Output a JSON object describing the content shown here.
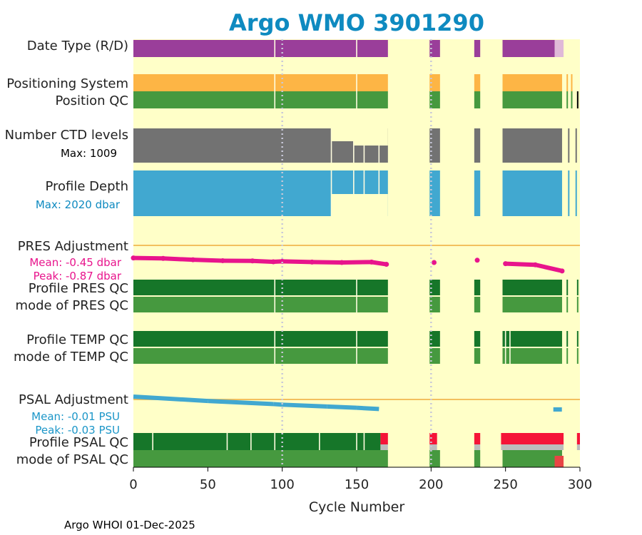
{
  "title": "Argo WMO 3901290",
  "footer": "Argo WHOI 01-Dec-2025",
  "chart_data": {
    "type": "bar",
    "title": "Argo WMO 3901290",
    "xlabel": "Cycle Number",
    "xlim": [
      0,
      300
    ],
    "xticks": [
      "0",
      "50",
      "100",
      "150",
      "200",
      "250",
      "300"
    ],
    "xtick_values": [
      0,
      50,
      100,
      150,
      200,
      250,
      300
    ],
    "grid_dotted_cycles": [
      100,
      200
    ],
    "data_gaps": [
      [
        171,
        199
      ],
      [
        206,
        229
      ],
      [
        233,
        248
      ]
    ],
    "panels": {
      "date_type": {
        "label": "Date Type (R/D)",
        "realtime_range": [
          0,
          283
        ],
        "delayed_range": [
          283,
          289
        ],
        "missing_cycles": [
          95,
          150,
          200,
          202,
          288,
          293,
          297
        ]
      },
      "positioning_system": {
        "label": "Positioning System",
        "range": [
          0,
          288
        ]
      },
      "position_qc": {
        "label": "Position QC",
        "range": [
          0,
          288
        ],
        "bad_cycles": [
          298
        ]
      },
      "ctd_levels": {
        "label": "Number CTD levels",
        "max_label": "Max: 1009",
        "max": 1009
      },
      "profile_depth": {
        "label": "Profile Depth",
        "max_label": "Max: 2020 dbar",
        "max": 2020
      },
      "pres_adjustment": {
        "label": "PRES Adjustment",
        "mean_label": "Mean: -0.45 dbar",
        "peak_label": "Peak: -0.87 dbar",
        "mean": -0.45,
        "peak": -0.87,
        "points": [
          [
            0,
            -0.3
          ],
          [
            20,
            -0.32
          ],
          [
            40,
            -0.38
          ],
          [
            60,
            -0.42
          ],
          [
            80,
            -0.43
          ],
          [
            94,
            -0.47
          ],
          [
            100,
            -0.45
          ],
          [
            120,
            -0.48
          ],
          [
            140,
            -0.5
          ],
          [
            160,
            -0.48
          ],
          [
            170,
            -0.58
          ],
          [
            202,
            -0.5
          ],
          [
            231,
            -0.4
          ],
          [
            250,
            -0.55
          ],
          [
            270,
            -0.6
          ],
          [
            288,
            -0.87
          ]
        ]
      },
      "profile_pres_qc": {
        "label": "Profile PRES QC"
      },
      "mode_pres_qc": {
        "label": "mode of PRES QC"
      },
      "profile_temp_qc": {
        "label": "Profile TEMP QC"
      },
      "mode_temp_qc": {
        "label": "mode of TEMP QC"
      },
      "psal_adjustment": {
        "label": "PSAL Adjustment",
        "mean_label": "Mean: -0.01 PSU",
        "peak_label": "Peak: -0.03 PSU",
        "mean": -0.01,
        "peak": -0.03,
        "points": [
          [
            0,
            -0.0
          ],
          [
            50,
            -0.007
          ],
          [
            94,
            -0.012
          ],
          [
            100,
            -0.013
          ],
          [
            130,
            -0.016
          ],
          [
            150,
            -0.018
          ],
          [
            165,
            -0.02
          ],
          [
            285,
            -0.03
          ]
        ]
      },
      "profile_psal_qc": {
        "label": "Profile PSAL QC",
        "bad_ranges": [
          [
            166,
            171
          ],
          [
            199,
            204
          ],
          [
            229,
            233
          ],
          [
            247,
            289
          ],
          [
            298,
            300
          ]
        ]
      },
      "mode_psal_qc": {
        "label": "mode of PSAL QC",
        "suspect_ranges": [
          [
            283,
            289
          ]
        ]
      }
    },
    "colors": {
      "background": "#ffffc8",
      "realtime": "#9a3e9a",
      "delayed": "#e0b9d8",
      "positioning": "#fdb545",
      "good_dark": "#167629",
      "good_light": "#46993f",
      "levels": "#727272",
      "depth": "#41a8d0",
      "pres": "#e8148c",
      "psal": "#41a8d0",
      "bad": "#f51438",
      "gray": "#bcbcbc",
      "suspect": "#e84444",
      "adjust_zero": "#f3c05e",
      "title": "#0e8ac0"
    }
  }
}
